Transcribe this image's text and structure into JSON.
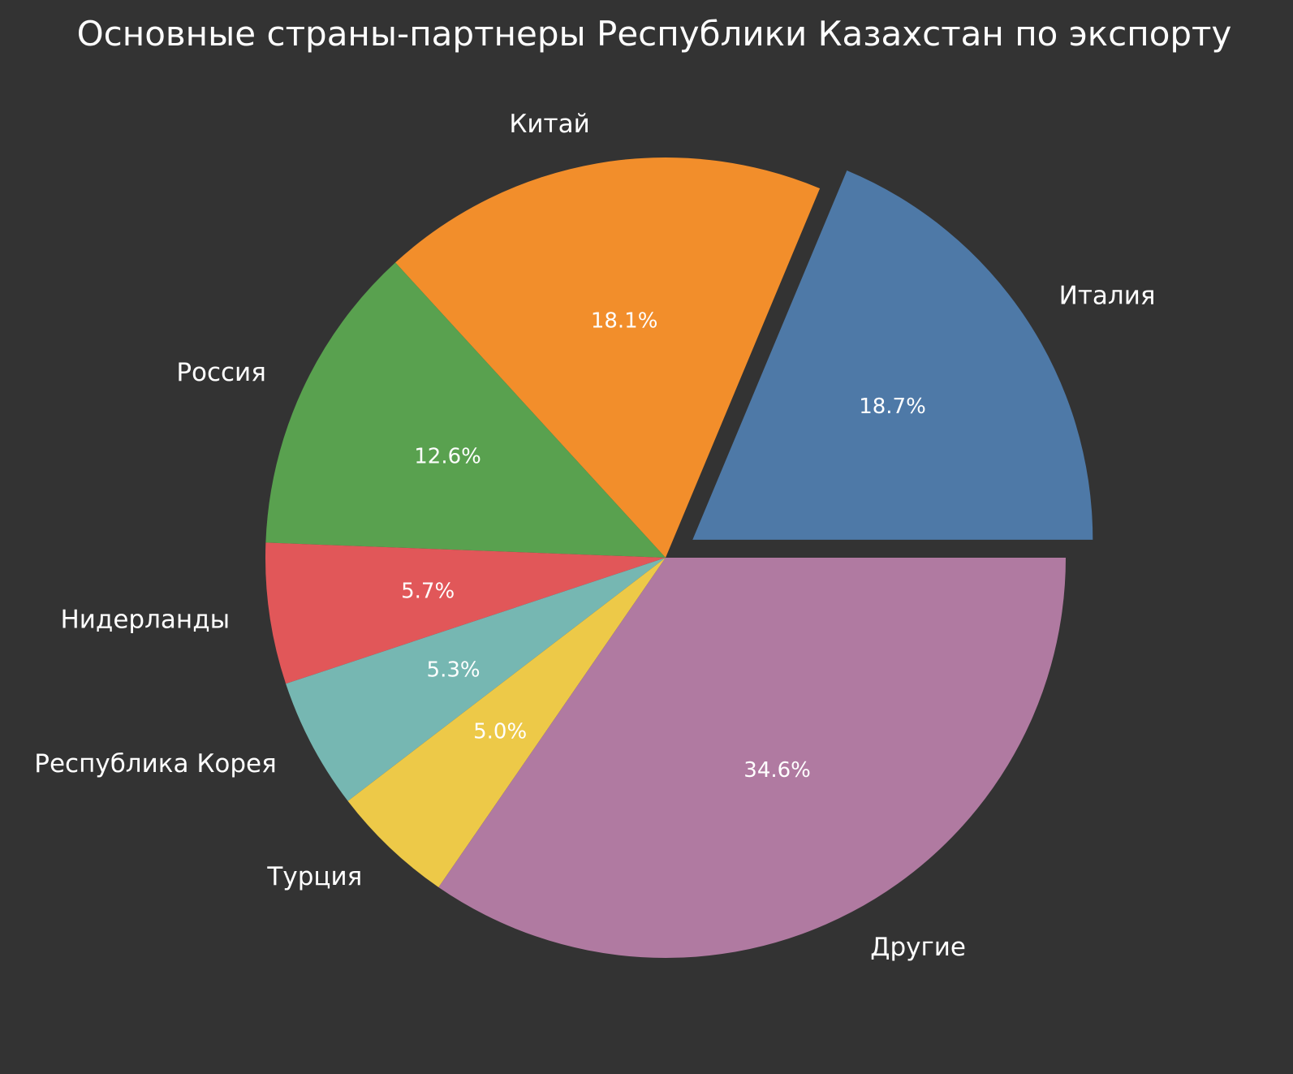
{
  "chart_data": {
    "type": "pie",
    "title": "Основные страны-партнеры Республики Казахстан по экспорту",
    "background_color": "#333333",
    "text_color": "#ffffff",
    "start_angle_deg": 0,
    "direction": "counterclockwise",
    "exploded": [
      "Италия"
    ],
    "slices": [
      {
        "label": "Италия",
        "value": 18.7,
        "pct_label": "18.7%",
        "color": "#4e79a7"
      },
      {
        "label": "Китай",
        "value": 18.1,
        "pct_label": "18.1%",
        "color": "#f28e2b"
      },
      {
        "label": "Россия",
        "value": 12.6,
        "pct_label": "12.6%",
        "color": "#59a14f"
      },
      {
        "label": "Нидерланды",
        "value": 5.7,
        "pct_label": "5.7%",
        "color": "#e15759"
      },
      {
        "label": "Республика Корея",
        "value": 5.3,
        "pct_label": "5.3%",
        "color": "#76b7b2"
      },
      {
        "label": "Турция",
        "value": 5.0,
        "pct_label": "5.0%",
        "color": "#edc948"
      },
      {
        "label": "Другие",
        "value": 34.6,
        "pct_label": "34.6%",
        "color": "#b07aa1"
      }
    ]
  }
}
